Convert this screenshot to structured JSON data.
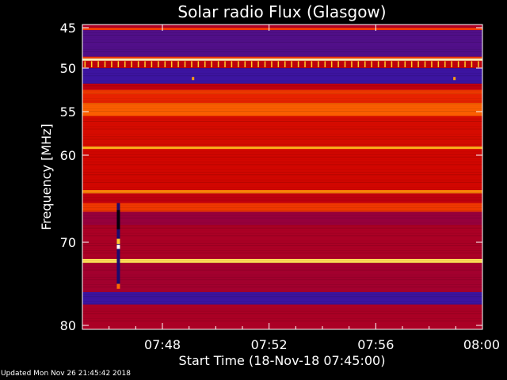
{
  "chart_data": {
    "type": "heatmap",
    "title": "Solar radio Flux (Glasgow)",
    "xlabel": "Start Time (18-Nov-18 07:45:00)",
    "ylabel": "Frequency [MHz]",
    "x_tick_labels": [
      "07:48",
      "07:52",
      "07:56",
      "08:00"
    ],
    "x_ticks_minutes": [
      3,
      7,
      11,
      15
    ],
    "xlim_minutes": [
      0,
      15
    ],
    "y_tick_labels": [
      "45",
      "50",
      "55",
      "60",
      "70",
      "80"
    ],
    "y_ticks": [
      45,
      50,
      55,
      60,
      70,
      80
    ],
    "ylim": [
      45,
      80
    ],
    "y_inverted": true,
    "grid": false,
    "colormap": "blue-red-yellow-white",
    "bands": [
      {
        "from": 45.0,
        "to": 45.3,
        "level": 0.55
      },
      {
        "from": 45.3,
        "to": 48.6,
        "level": 0.15
      },
      {
        "from": 48.6,
        "to": 48.8,
        "level": 0.55
      },
      {
        "from": 48.8,
        "to": 49.1,
        "level": 0.95
      },
      {
        "from": 49.1,
        "to": 50.0,
        "level": 0.35
      },
      {
        "from": 50.0,
        "to": 51.8,
        "level": 0.12
      },
      {
        "from": 51.8,
        "to": 52.5,
        "level": 0.35
      },
      {
        "from": 52.5,
        "to": 53.0,
        "level": 0.55
      },
      {
        "from": 53.0,
        "to": 54.0,
        "level": 0.5
      },
      {
        "from": 54.0,
        "to": 55.5,
        "level": 0.62
      },
      {
        "from": 55.5,
        "to": 59.0,
        "level": 0.42
      },
      {
        "from": 59.0,
        "to": 59.3,
        "level": 0.75
      },
      {
        "from": 59.3,
        "to": 64.0,
        "level": 0.4
      },
      {
        "from": 64.0,
        "to": 64.4,
        "level": 0.68
      },
      {
        "from": 64.4,
        "to": 65.5,
        "level": 0.35
      },
      {
        "from": 65.5,
        "to": 66.5,
        "level": 0.55
      },
      {
        "from": 66.5,
        "to": 68.0,
        "level": 0.25
      },
      {
        "from": 68.0,
        "to": 72.0,
        "level": 0.3
      },
      {
        "from": 72.0,
        "to": 72.5,
        "level": 0.85
      },
      {
        "from": 72.5,
        "to": 76.0,
        "level": 0.28
      },
      {
        "from": 76.0,
        "to": 77.5,
        "level": 0.12
      },
      {
        "from": 77.5,
        "to": 80.0,
        "level": 0.3
      }
    ],
    "burst": {
      "time_minutes": 1.35,
      "freq_from": 65.5,
      "freq_to": 75.5
    },
    "spots": [
      {
        "time_minutes": 4.15,
        "freq": 51.2
      },
      {
        "time_minutes": 13.95,
        "freq": 51.2
      }
    ]
  },
  "footer": {
    "updated_text": "Updated Mon Nov 26 21:45:42 2018"
  }
}
